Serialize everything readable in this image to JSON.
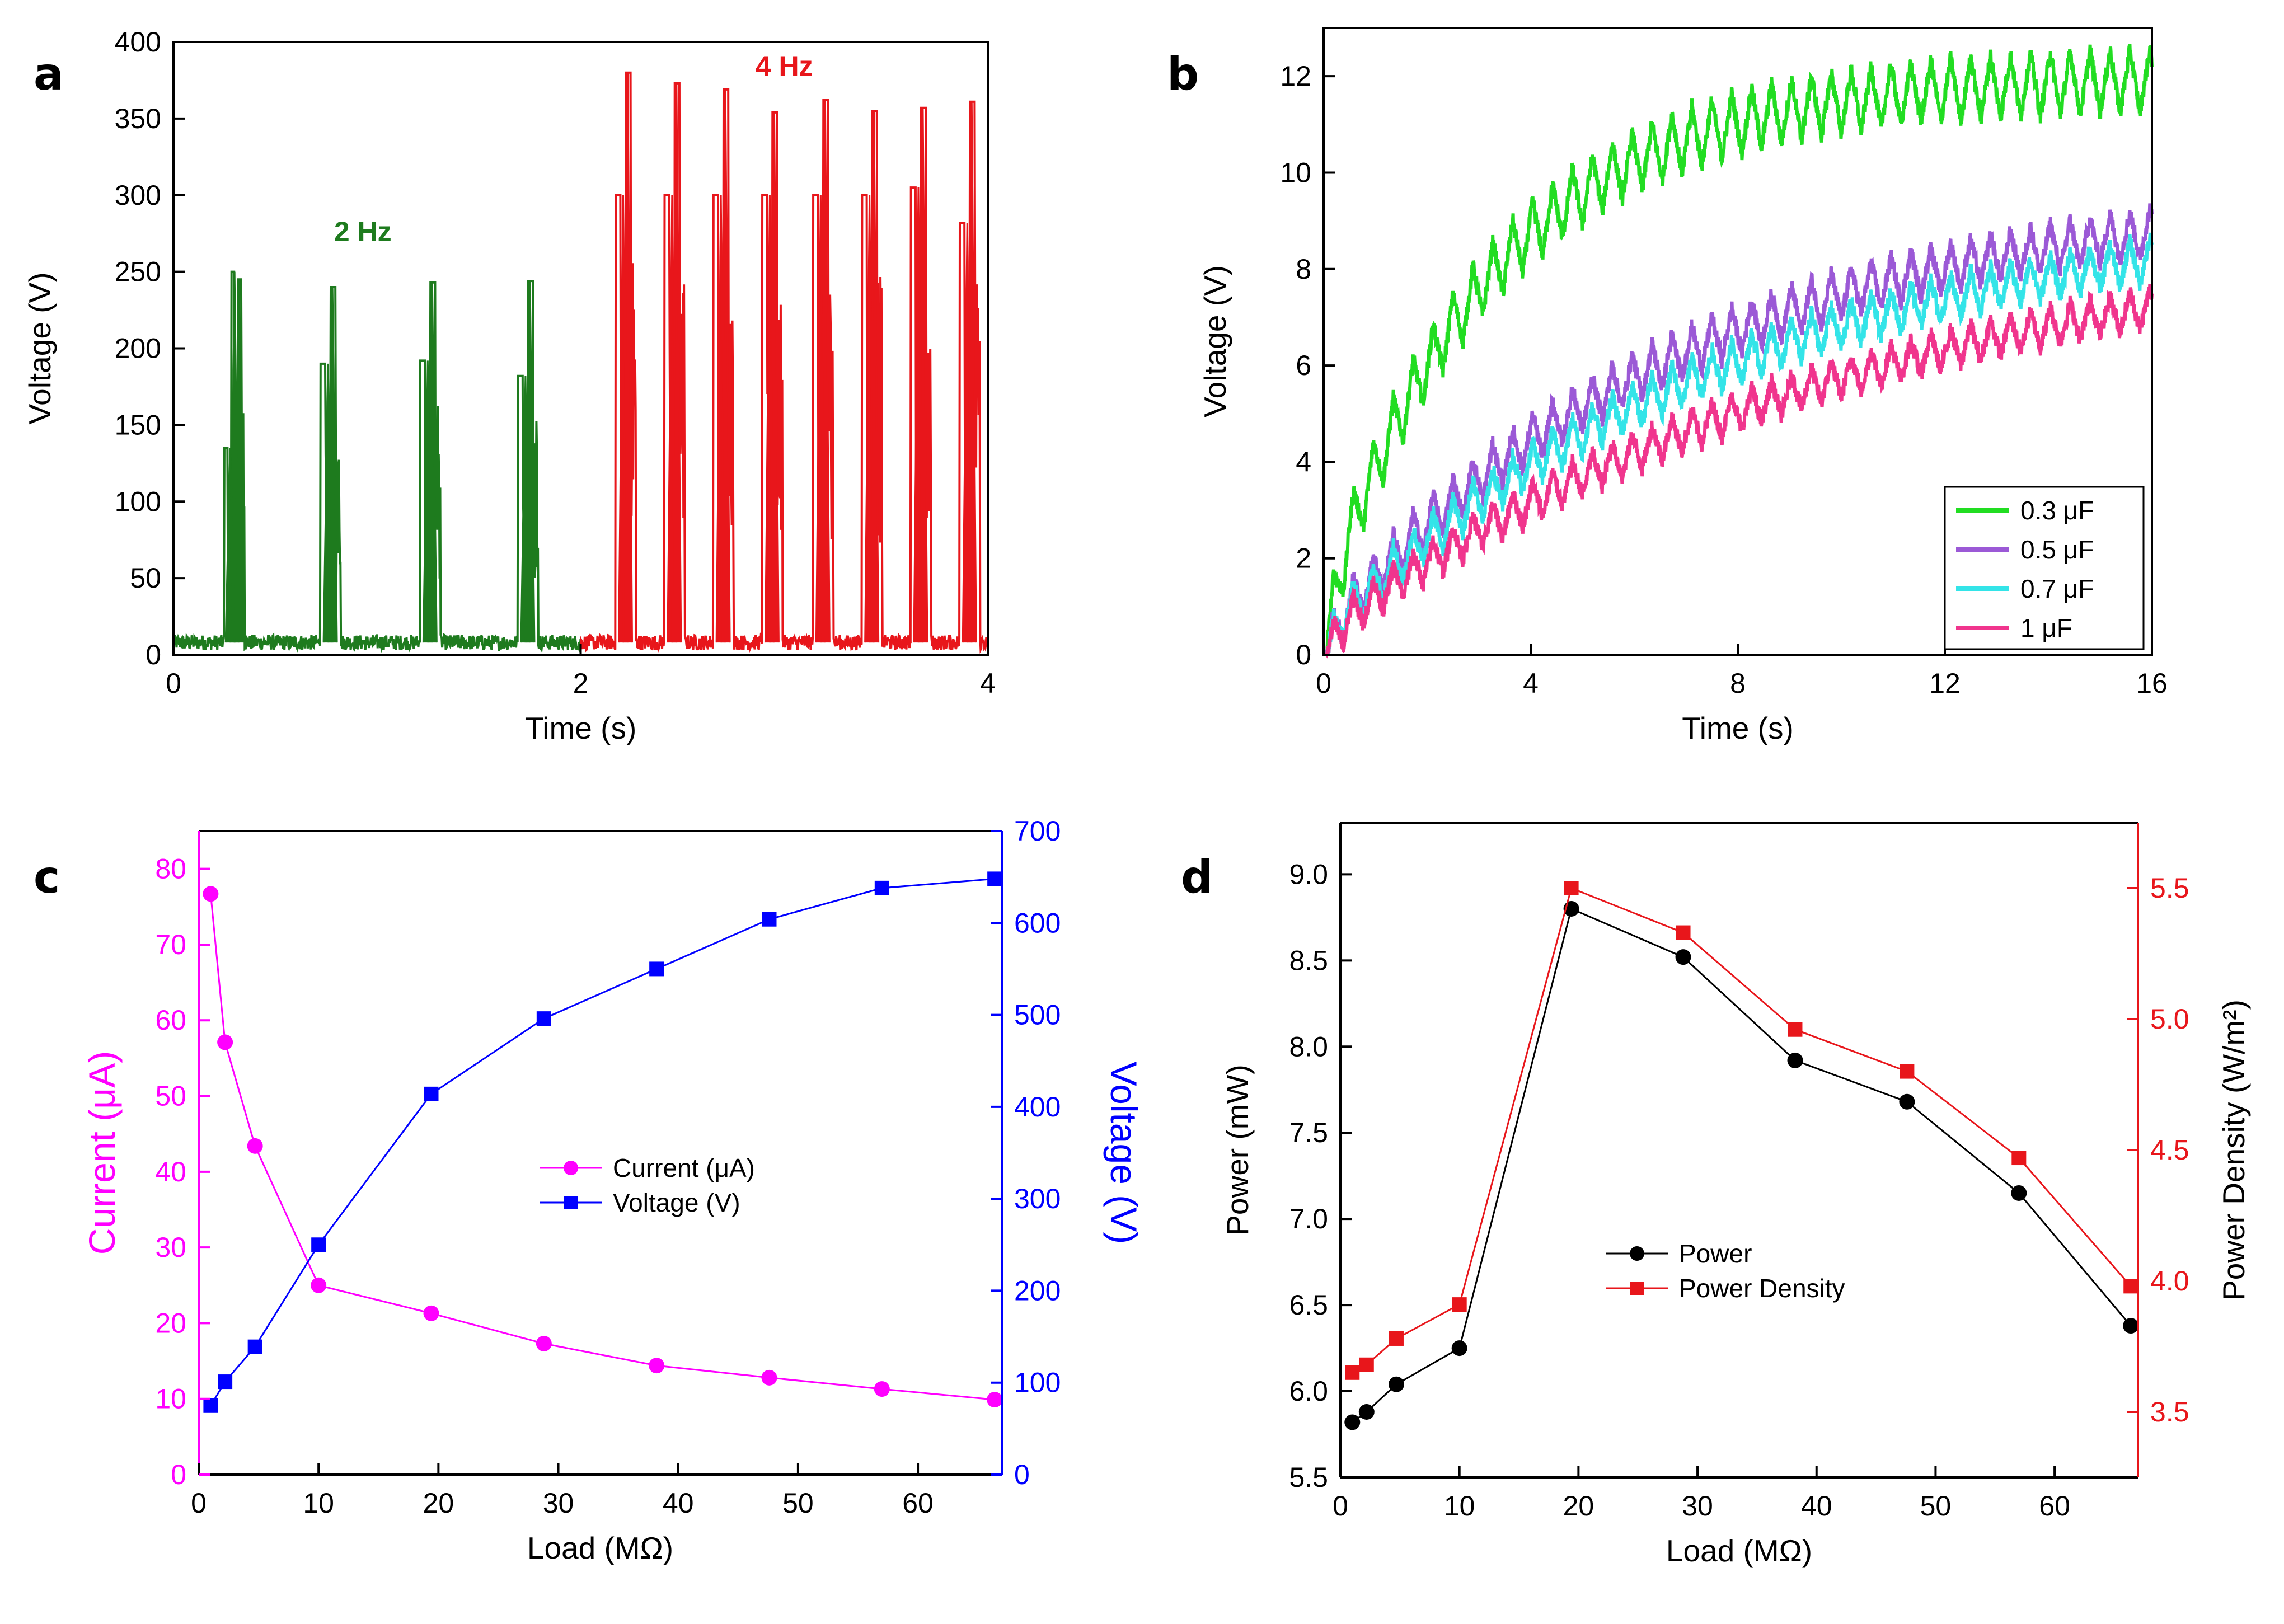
{
  "chart_data": [
    {
      "id": "a",
      "type": "line",
      "panel_label": "a",
      "xlabel": "Time (s)",
      "ylabel": "Voltage (V)",
      "xlim": [
        0,
        4
      ],
      "ylim": [
        0,
        400
      ],
      "xticks": [
        "0",
        "2",
        "4"
      ],
      "yticks": [
        "0",
        "50",
        "100",
        "150",
        "200",
        "250",
        "300",
        "350",
        "400"
      ],
      "baseline": 8,
      "annotations": [
        {
          "text": "2 Hz",
          "x": 0.93,
          "y": 270,
          "color": "#1e7b1e"
        },
        {
          "text": "4 Hz",
          "x": 3.0,
          "y": 378,
          "color": "#e8161b"
        }
      ],
      "series": [
        {
          "name": "2 Hz",
          "color": "#1e7b1e",
          "x_range": [
            0,
            2
          ],
          "pulses": [
            {
              "t": 0.3,
              "peaks": [
                135,
                250,
                245
              ]
            },
            {
              "t": 0.77,
              "peaks": [
                190,
                240
              ]
            },
            {
              "t": 1.26,
              "peaks": [
                192,
                243
              ]
            },
            {
              "t": 1.74,
              "peaks": [
                182,
                244
              ]
            }
          ]
        },
        {
          "name": "4 Hz",
          "color": "#e8161b",
          "x_range": [
            2,
            4
          ],
          "pulses": [
            {
              "t": 2.22,
              "peaks": [
                300,
                380
              ]
            },
            {
              "t": 2.46,
              "peaks": [
                300,
                373
              ]
            },
            {
              "t": 2.7,
              "peaks": [
                300,
                369
              ]
            },
            {
              "t": 2.94,
              "peaks": [
                300,
                354
              ]
            },
            {
              "t": 3.19,
              "peaks": [
                300,
                362
              ]
            },
            {
              "t": 3.43,
              "peaks": [
                300,
                355
              ]
            },
            {
              "t": 3.67,
              "peaks": [
                305,
                357
              ]
            },
            {
              "t": 3.91,
              "peaks": [
                282,
                361
              ]
            }
          ]
        }
      ]
    },
    {
      "id": "b",
      "type": "line",
      "panel_label": "b",
      "xlabel": "Time (s)",
      "ylabel": "Voltage (V)",
      "xlim": [
        0,
        16
      ],
      "ylim": [
        0,
        13
      ],
      "xticks": [
        "0",
        "4",
        "8",
        "12",
        "16"
      ],
      "yticks": [
        "0",
        "2",
        "4",
        "6",
        "8",
        "10",
        "12"
      ],
      "legend_position": "bottom-right",
      "series": [
        {
          "name": "0.3 μF",
          "color": "#22dd22",
          "saturation": 11.0,
          "tau": 3.3,
          "ripple": 1.3
        },
        {
          "name": "0.5 μF",
          "color": "#9b59d6",
          "saturation": 9.3,
          "tau": 7.0,
          "ripple": 1.0
        },
        {
          "name": "0.7 μF",
          "color": "#33e4e8",
          "saturation": 9.0,
          "tau": 8.0,
          "ripple": 0.9
        },
        {
          "name": "1 μF",
          "color": "#f0358d",
          "saturation": 8.7,
          "tau": 10.5,
          "ripple": 0.8
        }
      ]
    },
    {
      "id": "c",
      "type": "line",
      "panel_label": "c",
      "xlabel": "Load (MΩ)",
      "ylabel_left": "Current (μA)",
      "ylabel_right": "Voltage (V)",
      "xlim": [
        0,
        67
      ],
      "ylim_left": [
        0,
        85
      ],
      "ylim_right": [
        0,
        700
      ],
      "xticks": [
        "0",
        "10",
        "20",
        "30",
        "40",
        "50",
        "60"
      ],
      "yticks_left": [
        "0",
        "10",
        "20",
        "30",
        "40",
        "50",
        "60",
        "70",
        "80"
      ],
      "yticks_right": [
        "0",
        "100",
        "200",
        "300",
        "400",
        "500",
        "600",
        "700"
      ],
      "left_color": "#ff00ff",
      "right_color": "#0000ff",
      "x": [
        1,
        2.2,
        4.7,
        10,
        19.4,
        28.8,
        38.2,
        47.6,
        57,
        66.4
      ],
      "series": [
        {
          "name": "Current (μA)",
          "axis": "left",
          "marker": "circle",
          "color": "#ff00ff",
          "values": [
            76.7,
            57.1,
            43.4,
            25,
            21.3,
            17.3,
            14.4,
            12.8,
            11.3,
            9.9
          ]
        },
        {
          "name": "Voltage (V)",
          "axis": "right",
          "marker": "square",
          "color": "#0000ff",
          "values": [
            75,
            101,
            139,
            250,
            414,
            496,
            550,
            604,
            638,
            648
          ]
        }
      ]
    },
    {
      "id": "d",
      "type": "line",
      "panel_label": "d",
      "xlabel": "Load (MΩ)",
      "ylabel_left": "Power (mW)",
      "ylabel_right": "Power Density (W/m²)",
      "xlim": [
        0,
        67
      ],
      "ylim_left": [
        5.5,
        9.3
      ],
      "ylim_right": [
        3.25,
        5.75
      ],
      "xticks": [
        "0",
        "10",
        "20",
        "30",
        "40",
        "50",
        "60"
      ],
      "yticks_left": [
        "5.5",
        "6.0",
        "6.5",
        "7.0",
        "7.5",
        "8.0",
        "8.5",
        "9.0"
      ],
      "yticks_right": [
        "3.5",
        "4.0",
        "4.5",
        "5.0",
        "5.5"
      ],
      "left_color": "#000000",
      "right_color": "#e8161b",
      "x": [
        1,
        2.2,
        4.7,
        10,
        19.4,
        28.8,
        38.2,
        47.6,
        57,
        66.4
      ],
      "series": [
        {
          "name": "Power",
          "axis": "left",
          "marker": "circle",
          "color": "#000000",
          "values": [
            5.82,
            5.88,
            6.04,
            6.25,
            8.8,
            8.52,
            7.92,
            7.68,
            7.15,
            6.38
          ]
        },
        {
          "name": "Power Density",
          "axis": "right",
          "marker": "square",
          "color": "#e8161b",
          "values": [
            3.65,
            3.68,
            3.78,
            3.91,
            5.5,
            5.33,
            4.96,
            4.8,
            4.47,
            3.98
          ]
        }
      ]
    }
  ]
}
